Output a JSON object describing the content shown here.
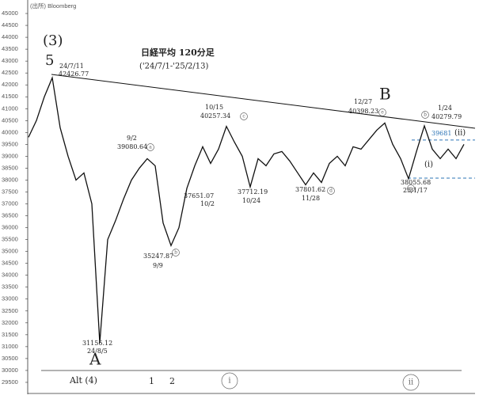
{
  "chart_data": {
    "type": "line",
    "source": "(出所) Bloomberg",
    "title": "日経平均 120分足",
    "subtitle": "('24/7/1-'25/2/13)",
    "categories": [
      null,
      null,
      null,
      null,
      null,
      null,
      null,
      null,
      null,
      null,
      null,
      null,
      null,
      null,
      null,
      null,
      null,
      null,
      null,
      null,
      null,
      null,
      null,
      null,
      null,
      null,
      null,
      null,
      null,
      null,
      null,
      null,
      null,
      null,
      null,
      null,
      null,
      null,
      null,
      null,
      null,
      null,
      null,
      null,
      null,
      null,
      null,
      null,
      null,
      null,
      null,
      null,
      null,
      null,
      null,
      null
    ],
    "values": [
      39800,
      40500,
      41500,
      42300,
      40200,
      39000,
      38000,
      38300,
      37000,
      31156,
      35500,
      36300,
      37200,
      38000,
      38500,
      38900,
      38600,
      36200,
      35247,
      36000,
      37651,
      38600,
      39400,
      38700,
      39300,
      40257,
      39600,
      39000,
      37712,
      38900,
      38600,
      39100,
      39200,
      38800,
      38300,
      37800,
      38300,
      37900,
      38700,
      39000,
      38600,
      39400,
      39300,
      39700,
      40100,
      40398,
      39500,
      38900,
      38055,
      39200,
      40279,
      39300,
      38900,
      39300,
      38900,
      39500
    ],
    "color": "#111111",
    "ylim": [
      29000,
      45500
    ],
    "yticks": [
      29500,
      30000,
      30500,
      31000,
      31500,
      32000,
      32500,
      33000,
      33500,
      34000,
      34500,
      35000,
      35500,
      36000,
      36500,
      37000,
      37500,
      38000,
      38500,
      39000,
      39500,
      40000,
      40500,
      41000,
      41500,
      42000,
      42500,
      43000,
      43500,
      44000,
      44500,
      45000
    ],
    "levels": [
      39681
    ],
    "level_color": "#2e75b6",
    "annotations": [
      "(3)",
      "5",
      "24/7/11",
      "42426.77",
      "9/2",
      "39080.64",
      "a",
      "10/15",
      "40257.34",
      "c",
      "12/27",
      "40398.23",
      "e",
      "B",
      "1/24",
      "40279.79",
      "b",
      "(ii)",
      "(i)",
      "37651.07",
      "10/2",
      "37712.19",
      "10/24",
      "37801.62",
      "11/28",
      "d",
      "38055.68",
      "25/1/17",
      "a",
      "35247.87",
      "9/9",
      "b",
      "31156.12",
      "24/8/5",
      "A",
      "Alt (4)",
      "1",
      "2",
      "i",
      "ii"
    ]
  }
}
